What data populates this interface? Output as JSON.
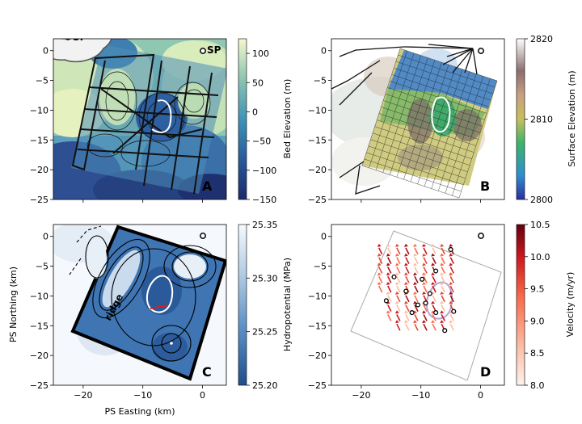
{
  "figure": {
    "xlabel": "PS Easting (km)",
    "ylabel": "PS Northing (km)"
  },
  "inset": {
    "label": "SP"
  },
  "chart_data": [
    {
      "panel": "A",
      "type": "heatmap",
      "xlim": [
        -25,
        4
      ],
      "ylim": [
        -25,
        2
      ],
      "xticks": [
        -20,
        -10,
        0
      ],
      "yticks": [
        0,
        -5,
        -10,
        -15,
        -20,
        -25
      ],
      "marker": {
        "x": 0,
        "y": 0,
        "label": "SP"
      },
      "colorbar": {
        "label": "Bed Elevation (m)",
        "range": [
          -150,
          125
        ],
        "ticks": [
          100,
          50,
          0,
          -50,
          -100,
          -150
        ],
        "colors": [
          "#1b2a6b",
          "#2a5a9a",
          "#3f93b8",
          "#8cc5b0",
          "#eef4c4"
        ]
      }
    },
    {
      "panel": "B",
      "type": "heatmap",
      "xlim": [
        -25,
        4
      ],
      "ylim": [
        -25,
        2
      ],
      "xticks": [
        -20,
        -10,
        0
      ],
      "yticks": [
        0,
        -5,
        -10,
        -15,
        -20,
        -25
      ],
      "marker": {
        "x": 0,
        "y": 0
      },
      "colorbar": {
        "label": "Surface Elevation (m)",
        "range": [
          2800,
          2820
        ],
        "ticks": [
          2820,
          2810,
          2800
        ],
        "colors": [
          "#2a2fa0",
          "#2f8fd0",
          "#3bb56a",
          "#c7c05a",
          "#c9a080",
          "#8c6e6e",
          "#ffffff"
        ]
      }
    },
    {
      "panel": "C",
      "type": "heatmap",
      "xlim": [
        -25,
        4
      ],
      "ylim": [
        -25,
        2
      ],
      "xticks": [
        -20,
        -10,
        0
      ],
      "yticks": [
        0,
        -5,
        -10,
        -15,
        -20,
        -25
      ],
      "marker": {
        "x": 0,
        "y": 0
      },
      "annotations": [
        "ridge"
      ],
      "colorbar": {
        "label": "Hydropotential (MPa)",
        "range": [
          25.2,
          25.35
        ],
        "ticks": [
          "25.35",
          "25.30",
          "25.25",
          "25.20"
        ],
        "colors": [
          "#1f4e8a",
          "#5b8fc4",
          "#b4cde4",
          "#f5f9fd"
        ]
      }
    },
    {
      "panel": "D",
      "type": "scatter",
      "xlim": [
        -25,
        4
      ],
      "ylim": [
        -25,
        2
      ],
      "xticks": [
        -20,
        -10,
        0
      ],
      "yticks": [
        0,
        -5,
        -10,
        -15,
        -20,
        -25
      ],
      "marker": {
        "x": 0,
        "y": 0
      },
      "stations": [
        {
          "x": -5,
          "y": -2.2
        },
        {
          "x": -7.5,
          "y": -5.8
        },
        {
          "x": -14.5,
          "y": -6.8
        },
        {
          "x": -9.8,
          "y": -7.2
        },
        {
          "x": -12.5,
          "y": -9.2
        },
        {
          "x": -8.5,
          "y": -9.6
        },
        {
          "x": -15.8,
          "y": -10.8
        },
        {
          "x": -10.5,
          "y": -11.5
        },
        {
          "x": -9.2,
          "y": -11.2
        },
        {
          "x": -11.5,
          "y": -12.8
        },
        {
          "x": -7.5,
          "y": -12.8
        },
        {
          "x": -4.5,
          "y": -12.6
        },
        {
          "x": -6,
          "y": -15.8
        }
      ],
      "colorbar": {
        "label": "Velocity (m/yr)",
        "range": [
          8.0,
          10.5
        ],
        "ticks": [
          "10.5",
          "10.0",
          "9.5",
          "9.0",
          "8.5",
          "8.0"
        ],
        "colors": [
          "#fff2ec",
          "#fcbba1",
          "#fb6a4a",
          "#cb181d",
          "#67000d"
        ]
      }
    }
  ]
}
